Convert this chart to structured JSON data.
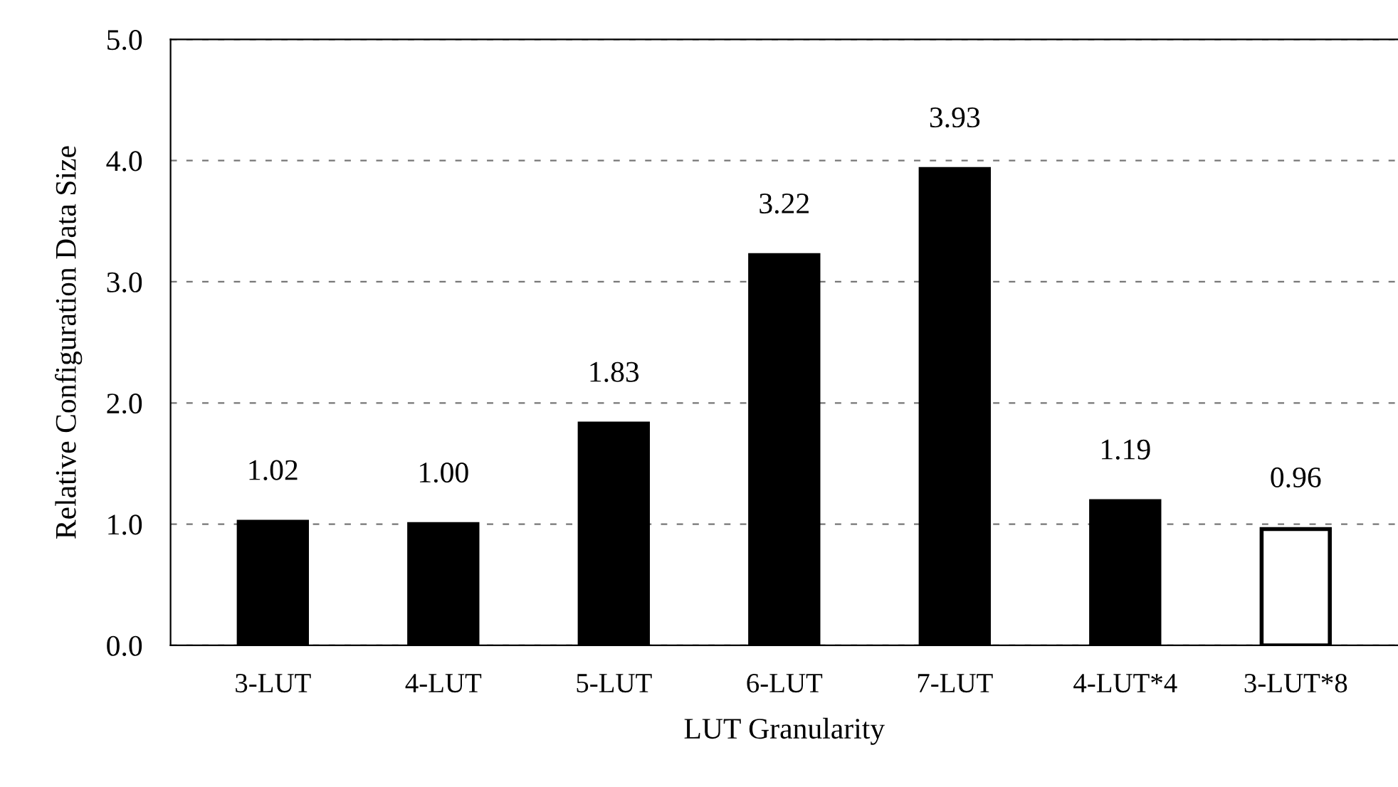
{
  "chart_data": {
    "type": "bar",
    "xlabel": "LUT Granularity",
    "ylabel": "Relative Configuration Data Size",
    "categories": [
      "3-LUT",
      "4-LUT",
      "5-LUT",
      "6-LUT",
      "7-LUT",
      "4-LUT*4",
      "3-LUT*8"
    ],
    "values": [
      1.02,
      1.0,
      1.83,
      3.22,
      3.93,
      1.19,
      0.96
    ],
    "colors": [
      "#000000",
      "#000000",
      "#000000",
      "#000000",
      "#000000",
      "#000000",
      "#ffffff"
    ],
    "value_labels": [
      "1.02",
      "1.00",
      "1.83",
      "3.22",
      "3.93",
      "1.19",
      "0.96"
    ],
    "ylim": [
      0,
      5
    ],
    "yticks": [
      {
        "value": 0,
        "label": "0.0"
      },
      {
        "value": 1,
        "label": "1.0"
      },
      {
        "value": 2,
        "label": "2.0"
      },
      {
        "value": 3,
        "label": "3.0"
      },
      {
        "value": 4,
        "label": "4.0"
      },
      {
        "value": 5,
        "label": "5.0"
      }
    ],
    "grid": "y"
  }
}
